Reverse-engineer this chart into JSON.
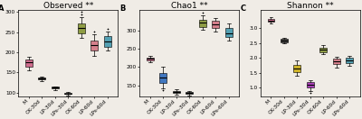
{
  "subplots": [
    {
      "label": "A",
      "title": "Observed **",
      "ylim": [
        90,
        305
      ],
      "yticks": [
        100,
        150,
        200,
        250,
        300
      ],
      "groups": [
        "M",
        "CK-30d",
        "LP-30d",
        "LPs-30d",
        "CK-60d",
        "LP-60d",
        "LPs-60d"
      ],
      "boxes": [
        {
          "med": 175,
          "q1": 165,
          "q3": 182,
          "whislo": 155,
          "whishi": 190,
          "fliers": [],
          "color": "#c8507a"
        },
        {
          "med": 135,
          "q1": 132,
          "q3": 137,
          "whislo": 129,
          "whishi": 140,
          "fliers": [],
          "color": "#222222"
        },
        {
          "med": 112,
          "q1": 110,
          "q3": 114,
          "whislo": 107,
          "whishi": 116,
          "fliers": [],
          "color": "#222222"
        },
        {
          "med": 98,
          "q1": 96,
          "q3": 100,
          "whislo": 93,
          "whishi": 102,
          "fliers": [],
          "color": "#222222"
        },
        {
          "med": 260,
          "q1": 248,
          "q3": 272,
          "whislo": 235,
          "whishi": 288,
          "fliers": [
            295,
            300
          ],
          "color": "#7a8c20"
        },
        {
          "med": 218,
          "q1": 204,
          "q3": 230,
          "whislo": 192,
          "whishi": 245,
          "fliers": [
            252
          ],
          "color": "#d06878"
        },
        {
          "med": 228,
          "q1": 214,
          "q3": 240,
          "whislo": 204,
          "whishi": 252,
          "fliers": [
            258
          ],
          "color": "#3090a8"
        }
      ]
    },
    {
      "label": "B",
      "title": "Chao1 **",
      "ylim": [
        120,
        355
      ],
      "yticks": [
        150,
        200,
        250,
        300
      ],
      "groups": [
        "M",
        "CK-30d",
        "LP-30d",
        "LPs-30d",
        "CK-60d",
        "LP-60d",
        "LPs-60d"
      ],
      "boxes": [
        {
          "med": 222,
          "q1": 218,
          "q3": 226,
          "whislo": 213,
          "whishi": 230,
          "fliers": [],
          "color": "#c8507a"
        },
        {
          "med": 172,
          "q1": 158,
          "q3": 185,
          "whislo": 142,
          "whishi": 200,
          "fliers": [
            138
          ],
          "color": "#1a5db8"
        },
        {
          "med": 133,
          "q1": 130,
          "q3": 136,
          "whislo": 126,
          "whishi": 139,
          "fliers": [],
          "color": "#222222"
        },
        {
          "med": 130,
          "q1": 127,
          "q3": 133,
          "whislo": 124,
          "whishi": 136,
          "fliers": [],
          "color": "#222222"
        },
        {
          "med": 320,
          "q1": 310,
          "q3": 328,
          "whislo": 302,
          "whishi": 340,
          "fliers": [
            348
          ],
          "color": "#7a8c20"
        },
        {
          "med": 316,
          "q1": 306,
          "q3": 325,
          "whislo": 296,
          "whishi": 334,
          "fliers": [],
          "color": "#d06878"
        },
        {
          "med": 292,
          "q1": 282,
          "q3": 306,
          "whislo": 272,
          "whishi": 318,
          "fliers": [],
          "color": "#3090a8"
        }
      ]
    },
    {
      "label": "C",
      "title": "Shannon **",
      "ylim": [
        0.7,
        3.6
      ],
      "yticks": [
        1.0,
        1.5,
        2.0,
        2.5,
        3.0
      ],
      "groups": [
        "M",
        "CK-30d",
        "LP-30d",
        "LPs-30d",
        "CK-60d",
        "LP-60d",
        "LPs-60d"
      ],
      "boxes": [
        {
          "med": 3.25,
          "q1": 3.2,
          "q3": 3.3,
          "whislo": 3.15,
          "whishi": 3.35,
          "fliers": [],
          "color": "#c8507a"
        },
        {
          "med": 2.58,
          "q1": 2.53,
          "q3": 2.63,
          "whislo": 2.48,
          "whishi": 2.67,
          "fliers": [],
          "color": "#222222"
        },
        {
          "med": 1.65,
          "q1": 1.52,
          "q3": 1.76,
          "whislo": 1.4,
          "whishi": 1.9,
          "fliers": [],
          "color": "#c8a800"
        },
        {
          "med": 1.1,
          "q1": 1.0,
          "q3": 1.18,
          "whislo": 0.88,
          "whishi": 1.25,
          "fliers": [
            0.82
          ],
          "color": "#9b1ab0"
        },
        {
          "med": 2.28,
          "q1": 2.2,
          "q3": 2.35,
          "whislo": 2.13,
          "whishi": 2.42,
          "fliers": [],
          "color": "#7a8c20"
        },
        {
          "med": 1.88,
          "q1": 1.78,
          "q3": 1.96,
          "whislo": 1.68,
          "whishi": 2.04,
          "fliers": [],
          "color": "#d06878"
        },
        {
          "med": 1.92,
          "q1": 1.83,
          "q3": 2.0,
          "whislo": 1.74,
          "whishi": 2.07,
          "fliers": [],
          "color": "#3090a8"
        }
      ]
    }
  ],
  "background_color": "#f0ece6",
  "title_fontsize": 6.5,
  "tick_fontsize": 4.2,
  "label_fontsize": 6
}
